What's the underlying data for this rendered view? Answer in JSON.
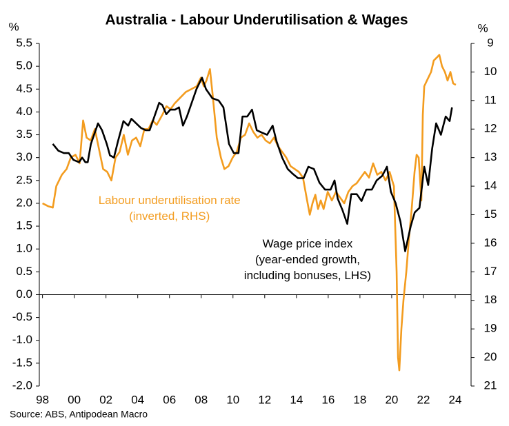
{
  "chart_data": {
    "type": "line",
    "title": "Australia - Labour Underutilisation & Wages",
    "y_label": "%",
    "y2_label": "%",
    "source": "Source: ABS, Antipodean Macro",
    "annotations": [
      {
        "lines": [
          "Labour underutilisation rate",
          "(inverted, RHS)"
        ],
        "color": "#f39c1f",
        "x": 2006,
        "y": 2.05
      },
      {
        "lines": [
          "Wage price index",
          "(year-ended growth,",
          "including bonuses, LHS)"
        ],
        "color": "#000000",
        "x": 2014.7,
        "y": 1.1
      }
    ],
    "xlim": [
      1997.8,
      2025
    ],
    "xticks": [
      {
        "value": 1998,
        "label": "98"
      },
      {
        "value": 2000,
        "label": "00"
      },
      {
        "value": 2002,
        "label": "02"
      },
      {
        "value": 2004,
        "label": "04"
      },
      {
        "value": 2006,
        "label": "06"
      },
      {
        "value": 2008,
        "label": "08"
      },
      {
        "value": 2010,
        "label": "10"
      },
      {
        "value": 2012,
        "label": "12"
      },
      {
        "value": 2014,
        "label": "14"
      },
      {
        "value": 2016,
        "label": "16"
      },
      {
        "value": 2018,
        "label": "18"
      },
      {
        "value": 2020,
        "label": "20"
      },
      {
        "value": 2022,
        "label": "22"
      },
      {
        "value": 2024,
        "label": "24"
      }
    ],
    "ylim": [
      -2,
      5.5
    ],
    "yticks": [
      5.5,
      {
        "value": 5,
        "label": "5.0"
      },
      4.5,
      {
        "value": 4,
        "label": "4.0"
      },
      3.5,
      {
        "value": 3,
        "label": "3.0"
      },
      2.5,
      {
        "value": 2,
        "label": "2.0"
      },
      1.5,
      {
        "value": 1,
        "label": "1.0"
      },
      0.5,
      {
        "value": 0,
        "label": "0.0"
      },
      -0.5,
      {
        "value": -1,
        "label": "-1.0"
      },
      -1.5,
      {
        "value": -2,
        "label": "-2.0"
      }
    ],
    "y2lim": [
      9,
      21
    ],
    "y2_inverted": true,
    "y2ticks": [
      9,
      10,
      11,
      12,
      13,
      14,
      15,
      16,
      17,
      18,
      19,
      20,
      21
    ],
    "series": [
      {
        "name": "Labour underutilisation rate",
        "color": "#f39c1f",
        "axis": "y2",
        "x": [
          1998.0,
          1998.35,
          1998.65,
          1998.87,
          1999.22,
          1999.52,
          1999.78,
          2000.08,
          2000.34,
          2000.56,
          2000.78,
          2001.04,
          2001.3,
          2001.56,
          2001.82,
          2002.08,
          2002.34,
          2002.6,
          2002.86,
          2003.12,
          2003.38,
          2003.64,
          2003.9,
          2004.16,
          2004.42,
          2004.68,
          2004.94,
          2005.2,
          2005.55,
          2005.81,
          2006.07,
          2006.33,
          2006.68,
          2007.03,
          2007.38,
          2007.72,
          2007.98,
          2008.16,
          2008.33,
          2008.55,
          2008.72,
          2008.98,
          2009.24,
          2009.46,
          2009.72,
          2009.98,
          2010.24,
          2010.5,
          2010.76,
          2011.02,
          2011.28,
          2011.54,
          2011.8,
          2012.06,
          2012.32,
          2012.58,
          2012.84,
          2013.1,
          2013.36,
          2013.63,
          2013.89,
          2014.15,
          2014.41,
          2014.67,
          2014.84,
          2015.01,
          2015.19,
          2015.36,
          2015.53,
          2015.71,
          2015.97,
          2016.23,
          2016.49,
          2016.75,
          2017.01,
          2017.27,
          2017.53,
          2017.79,
          2018.05,
          2018.31,
          2018.57,
          2018.83,
          2019.09,
          2019.35,
          2019.61,
          2019.87,
          2020.14,
          2020.31,
          2020.4,
          2020.48,
          2020.61,
          2020.74,
          2020.92,
          2021.09,
          2021.26,
          2021.44,
          2021.57,
          2021.7,
          2021.87,
          2021.96,
          2022.05,
          2022.22,
          2022.48,
          2022.65,
          2022.83,
          2023.0,
          2023.17,
          2023.35,
          2023.52,
          2023.7,
          2023.87,
          2024.04
        ],
        "values": [
          14.6,
          14.7,
          14.75,
          14.0,
          13.6,
          13.4,
          13.0,
          12.9,
          13.2,
          11.7,
          12.3,
          12.4,
          12.0,
          12.7,
          13.4,
          13.5,
          13.8,
          13.0,
          12.8,
          12.2,
          12.9,
          12.4,
          12.3,
          12.6,
          12.0,
          12.0,
          11.7,
          11.85,
          11.5,
          11.2,
          11.3,
          11.1,
          10.9,
          10.7,
          10.6,
          10.5,
          10.2,
          10.5,
          10.3,
          9.9,
          10.8,
          12.3,
          13.0,
          13.4,
          13.3,
          13.0,
          12.8,
          12.3,
          12.2,
          11.8,
          12.1,
          12.3,
          12.2,
          12.4,
          12.5,
          12.3,
          12.6,
          12.8,
          13.0,
          13.3,
          13.4,
          13.5,
          13.7,
          14.5,
          15.0,
          14.6,
          14.3,
          14.8,
          14.5,
          14.8,
          14.2,
          14.5,
          14.2,
          14.4,
          14.6,
          14.2,
          14.0,
          13.9,
          13.7,
          13.5,
          13.7,
          13.2,
          13.6,
          13.5,
          13.8,
          13.5,
          14.0,
          17.0,
          20.0,
          20.45,
          19.0,
          18.0,
          17.0,
          15.8,
          14.8,
          13.5,
          12.9,
          13.0,
          14.5,
          11.5,
          10.5,
          10.3,
          10.0,
          9.6,
          9.5,
          9.4,
          9.8,
          10.0,
          10.3,
          10.0,
          10.4,
          10.45
        ]
      },
      {
        "name": "Wage price index",
        "color": "#000000",
        "axis": "y",
        "x": [
          1998.65,
          1999.0,
          1999.35,
          1999.65,
          1999.95,
          2000.3,
          2000.5,
          2000.7,
          2000.85,
          2001.05,
          2001.3,
          2001.5,
          2001.75,
          2002.05,
          2002.25,
          2002.5,
          2002.75,
          2003.1,
          2003.4,
          2003.6,
          2003.9,
          2004.2,
          2004.5,
          2004.75,
          2005.05,
          2005.35,
          2005.55,
          2005.8,
          2006.05,
          2006.35,
          2006.6,
          2006.85,
          2007.1,
          2007.4,
          2007.7,
          2008.05,
          2008.3,
          2008.7,
          2009.1,
          2009.4,
          2009.75,
          2010.05,
          2010.35,
          2010.6,
          2010.9,
          2011.2,
          2011.5,
          2011.8,
          2012.15,
          2012.5,
          2012.75,
          2013.1,
          2013.45,
          2013.75,
          2014.1,
          2014.45,
          2014.75,
          2015.1,
          2015.45,
          2015.8,
          2016.15,
          2016.4,
          2016.6,
          2016.9,
          2017.2,
          2017.45,
          2017.8,
          2018.1,
          2018.4,
          2018.75,
          2019.05,
          2019.4,
          2019.7,
          2019.95,
          2020.25,
          2020.55,
          2020.85,
          2021.2,
          2021.45,
          2021.75,
          2022.05,
          2022.3,
          2022.55,
          2022.8,
          2023.1,
          2023.4,
          2023.65,
          2023.8
        ],
        "values": [
          3.3,
          3.15,
          3.1,
          3.1,
          2.95,
          2.9,
          3.0,
          2.9,
          2.9,
          3.3,
          3.55,
          3.75,
          3.6,
          3.3,
          3.05,
          3.0,
          3.35,
          3.8,
          3.7,
          3.85,
          3.75,
          3.65,
          3.6,
          3.6,
          3.9,
          4.2,
          4.15,
          3.95,
          4.05,
          4.05,
          4.1,
          3.7,
          3.9,
          4.2,
          4.5,
          4.75,
          4.5,
          4.3,
          4.25,
          4.1,
          3.3,
          3.1,
          3.1,
          3.9,
          3.9,
          4.05,
          3.6,
          3.55,
          3.5,
          3.7,
          3.35,
          3.0,
          2.75,
          2.65,
          2.55,
          2.55,
          2.8,
          2.75,
          2.45,
          2.3,
          2.3,
          2.5,
          2.1,
          1.85,
          1.55,
          2.2,
          2.2,
          2.05,
          2.3,
          2.3,
          2.5,
          2.6,
          2.8,
          2.25,
          2.0,
          1.6,
          0.95,
          1.5,
          1.8,
          1.9,
          2.8,
          2.4,
          3.2,
          3.75,
          3.5,
          3.9,
          3.8,
          4.1
        ]
      }
    ]
  }
}
